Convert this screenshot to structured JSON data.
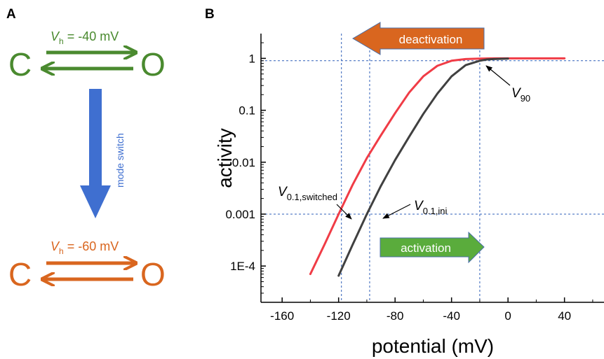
{
  "panel_a": {
    "label": "A",
    "top_state": {
      "v_symbol": "V",
      "v_sub": "h",
      "v_value": " = -40 mV",
      "closed": "C",
      "open": "O",
      "color": "#4a8a2f"
    },
    "mode_switch": {
      "label": "mode switch",
      "color": "#3f6fd0"
    },
    "bottom_state": {
      "v_symbol": "V",
      "v_sub": "h",
      "v_value": " = -60 mV",
      "closed": "C",
      "open": "O",
      "color": "#d9661f"
    }
  },
  "panel_b": {
    "label": "B",
    "deactivation_label": "deactivation",
    "deactivation_color": "#d9661f",
    "activation_label": "activation",
    "activation_color": "#5aac3c",
    "annotations": {
      "v90": {
        "main": "V",
        "sub": "90"
      },
      "v01_switched": {
        "main": "V",
        "sub": "0.1,switched"
      },
      "v01_ini": {
        "main": "V",
        "sub": "0.1,ini"
      }
    }
  },
  "chart_data": {
    "type": "line",
    "title": "",
    "xlabel": "potential (mV)",
    "ylabel": "activity",
    "xlim": [
      -175,
      68
    ],
    "ylim": [
      2e-05,
      3
    ],
    "yscale": "log",
    "xticks": [
      -160,
      -120,
      -80,
      -40,
      0,
      40
    ],
    "xtick_labels": [
      "-160",
      "-120",
      "-80",
      "-40",
      "0",
      "40"
    ],
    "yticks": [
      0.0001,
      0.001,
      0.01,
      0.1,
      1
    ],
    "ytick_labels": [
      "1E-4",
      "0.001",
      "0.01",
      "0.1",
      "1"
    ],
    "grid": false,
    "series": [
      {
        "color": "#f03c46",
        "x": [
          -140,
          -130,
          -120,
          -110,
          -100,
          -90,
          -80,
          -70,
          -60,
          -50,
          -40,
          -30,
          -20,
          -10,
          0,
          20,
          40
        ],
        "y": [
          7e-05,
          0.00026,
          0.001,
          0.0037,
          0.012,
          0.033,
          0.088,
          0.22,
          0.45,
          0.72,
          0.9,
          0.97,
          0.99,
          1.0,
          1.0,
          1.0,
          1.0
        ]
      },
      {
        "color": "#404040",
        "x": [
          -120,
          -110,
          -100,
          -90,
          -80,
          -70,
          -60,
          -50,
          -40,
          -30,
          -20,
          -15,
          -10,
          0
        ],
        "y": [
          6.5e-05,
          0.00026,
          0.001,
          0.0035,
          0.011,
          0.031,
          0.085,
          0.21,
          0.45,
          0.74,
          0.9,
          0.95,
          0.97,
          0.99
        ]
      }
    ],
    "reference_lines": {
      "color": "#2f5fb8",
      "horizontal": [
        0.9,
        0.001
      ],
      "vertical": [
        -118,
        -98,
        -20
      ]
    }
  }
}
